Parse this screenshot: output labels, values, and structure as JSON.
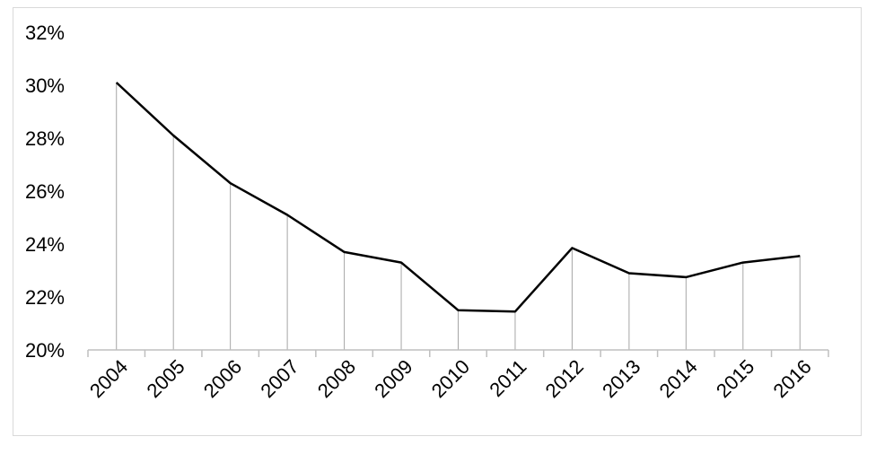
{
  "chart_data": {
    "type": "line",
    "title": "",
    "xlabel": "",
    "ylabel": "",
    "categories": [
      "2004",
      "2005",
      "2006",
      "2007",
      "2008",
      "2009",
      "2010",
      "2011",
      "2012",
      "2013",
      "2014",
      "2015",
      "2016"
    ],
    "series": [
      {
        "values": [
          30.1,
          28.1,
          26.3,
          25.1,
          23.7,
          23.3,
          21.5,
          21.45,
          23.85,
          22.9,
          22.75,
          23.3,
          23.55
        ]
      }
    ],
    "ylim": [
      20,
      32
    ],
    "yticks": [
      "20%",
      "22%",
      "24%",
      "26%",
      "28%",
      "30%",
      "32%"
    ],
    "drop_lines": true,
    "grid": false,
    "legend": "none",
    "colors": {
      "line": "#000000",
      "drop_line": "#a6a6a6",
      "axis": "#bfbfbf"
    }
  }
}
